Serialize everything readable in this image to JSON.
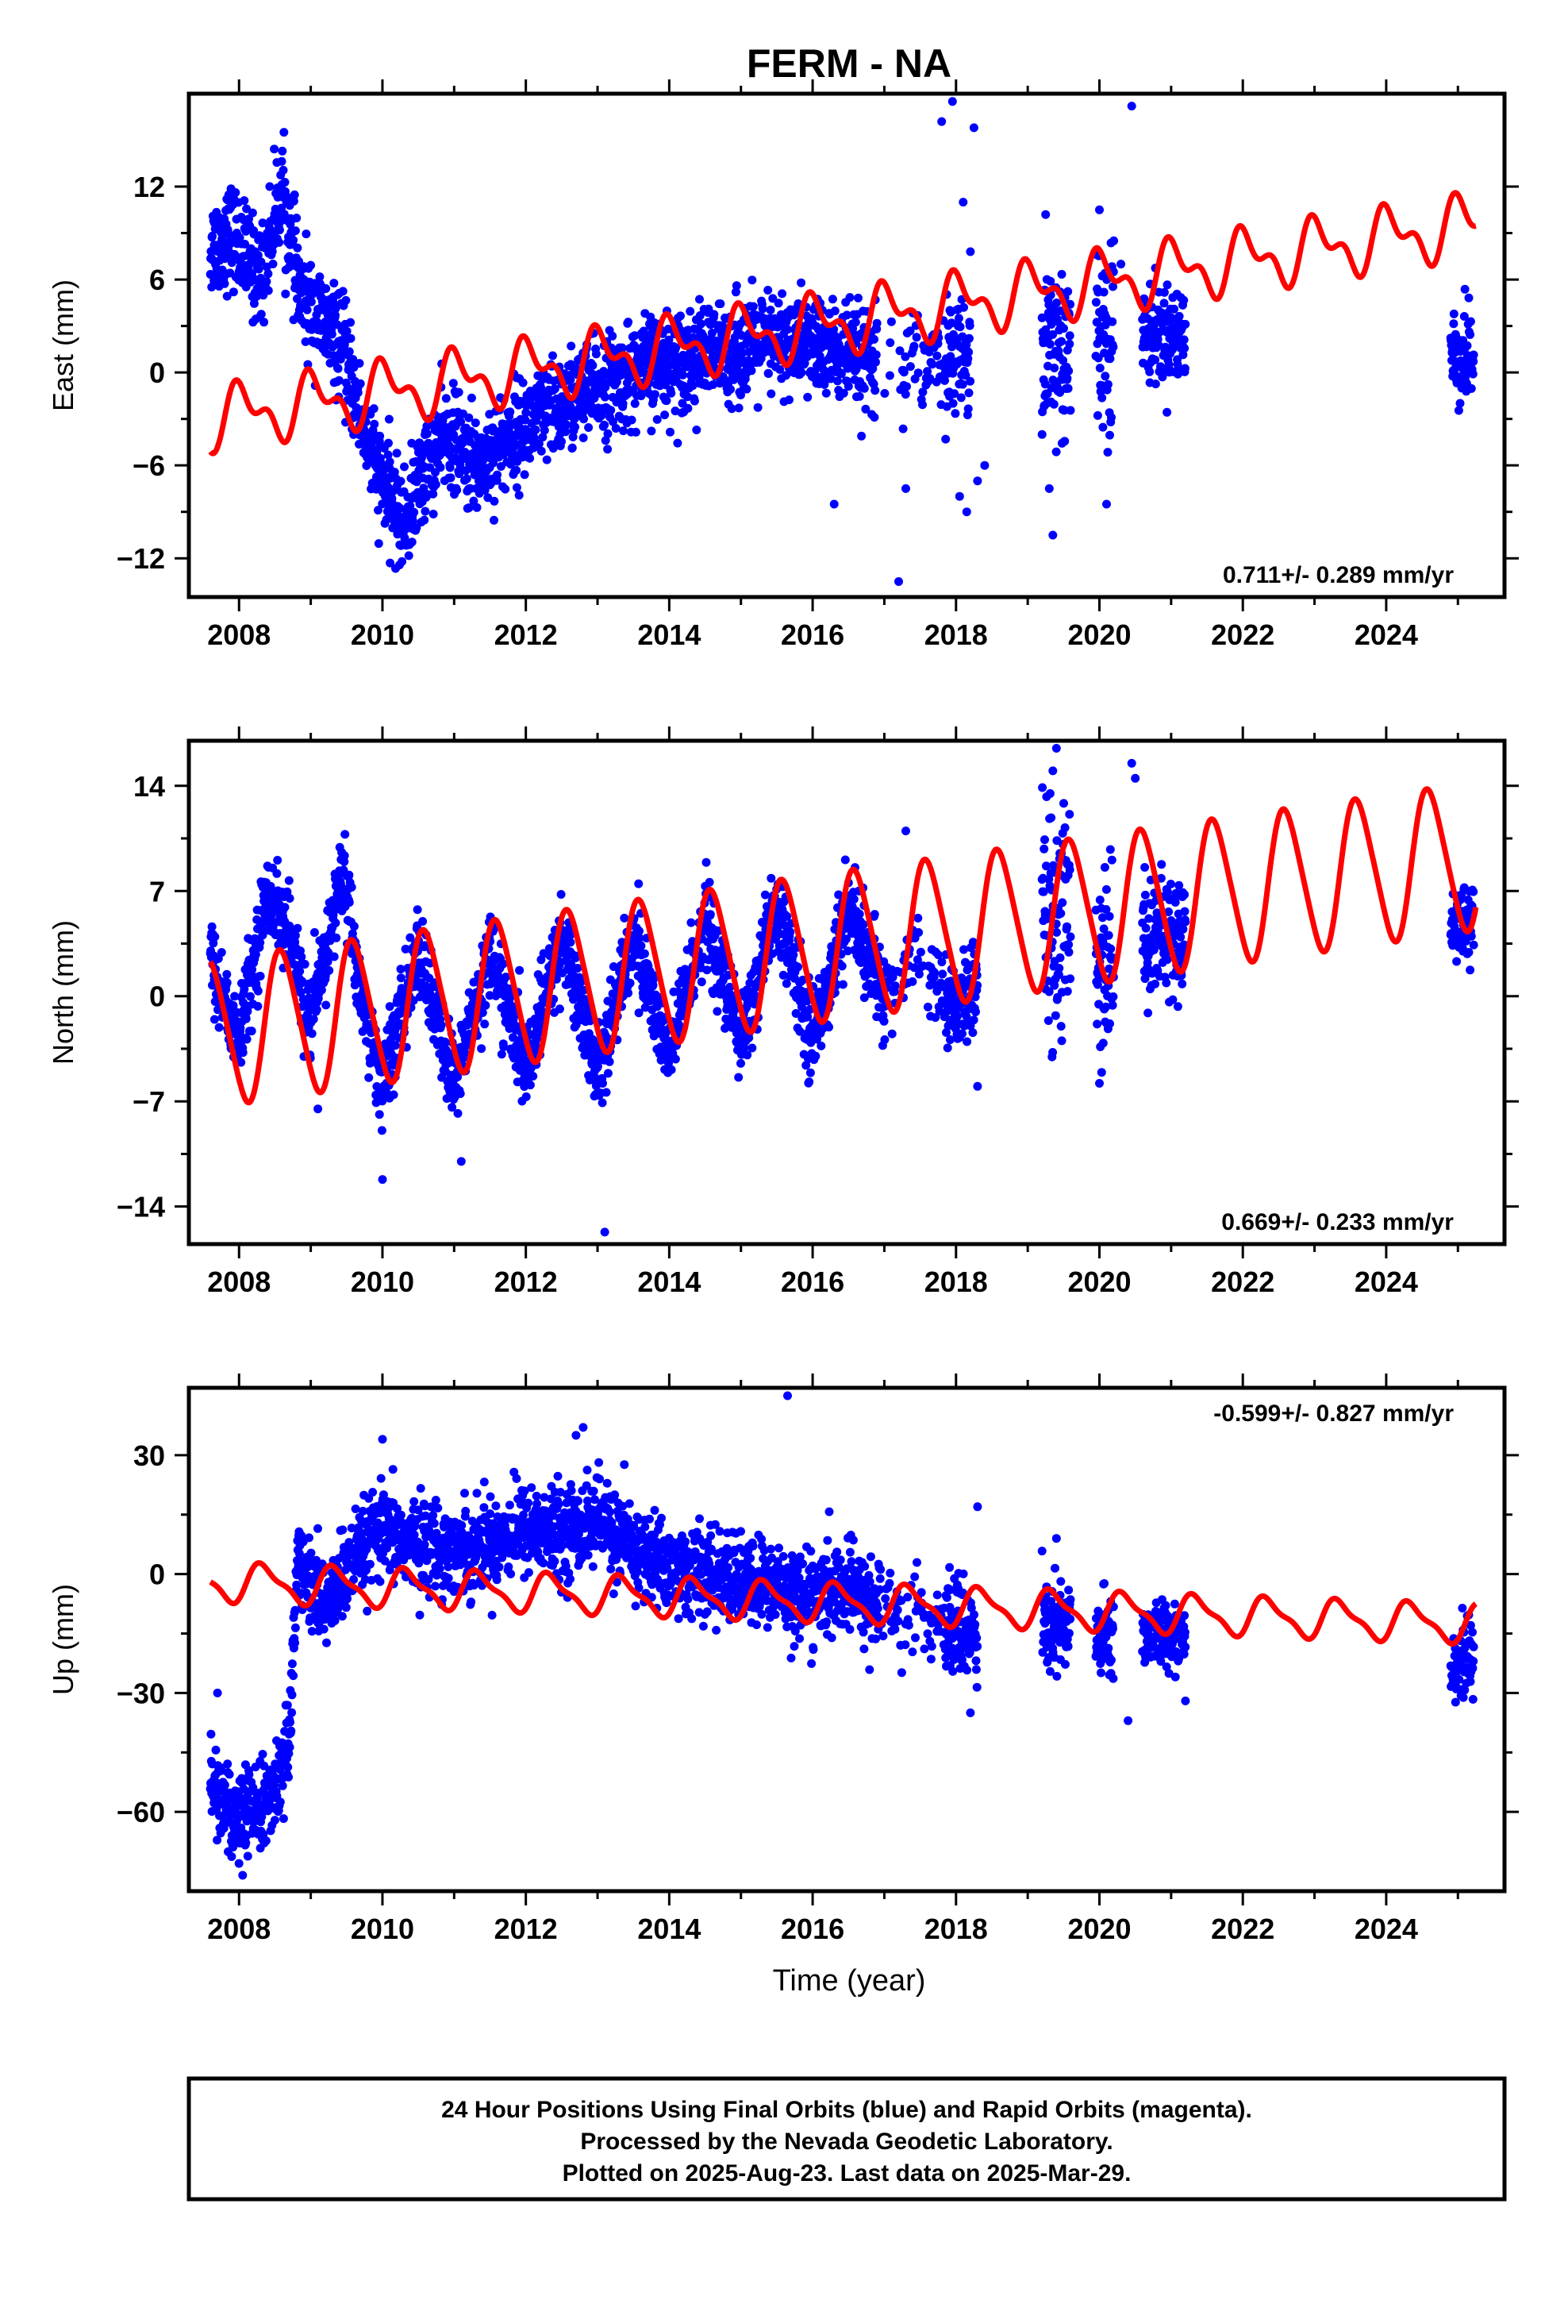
{
  "title": "FERM - NA",
  "colors": {
    "final": "#0000ff",
    "model": "#ff0000",
    "frame": "#000000"
  },
  "footer": {
    "line1": "24 Hour Positions Using Final Orbits (blue) and Rapid Orbits (magenta).",
    "line2": "Processed by the Nevada Geodetic Laboratory.",
    "line3": "Plotted on 2025-Aug-23. Last data on 2025-Mar-29."
  },
  "chart_data": [
    {
      "type": "scatter",
      "name": "east",
      "ylabel": "East (mm)",
      "xlabel": "",
      "xlim": [
        2007.3,
        2025.65
      ],
      "ylim": [
        -14.5,
        18
      ],
      "xticks": [
        2008,
        2010,
        2012,
        2014,
        2016,
        2018,
        2020,
        2022,
        2024
      ],
      "yticks": [
        -12,
        -6,
        0,
        6,
        12
      ],
      "rate_label": "0.711+/- 0.289 mm/yr",
      "rate_position": "bottom-right",
      "data_track": [
        [
          2007.6,
          8
        ],
        [
          2007.9,
          9
        ],
        [
          2008.3,
          6
        ],
        [
          2008.6,
          12
        ],
        [
          2008.85,
          5
        ],
        [
          2009.2,
          3
        ],
        [
          2009.45,
          1.5
        ],
        [
          2009.65,
          -2
        ],
        [
          2009.9,
          -6
        ],
        [
          2010.3,
          -10
        ],
        [
          2010.6,
          -6
        ],
        [
          2010.9,
          -4
        ],
        [
          2011.3,
          -6
        ],
        [
          2011.8,
          -4
        ],
        [
          2012.2,
          -3
        ],
        [
          2012.7,
          -1.5
        ],
        [
          2013.3,
          -0.5
        ],
        [
          2013.8,
          0.5
        ],
        [
          2014.4,
          1
        ],
        [
          2015,
          1.5
        ],
        [
          2015.6,
          2
        ],
        [
          2016.2,
          1.5
        ],
        [
          2016.8,
          0.5
        ],
        [
          2017.5,
          0.5
        ],
        [
          2018.2,
          1.5
        ]
      ],
      "data_spread": 1.6,
      "data_clusters": [
        {
          "x": [
            2019.2,
            2019.6
          ],
          "y": 1.5,
          "spread": 3.5
        },
        {
          "x": [
            2019.95,
            2020.2
          ],
          "y": 2.5,
          "spread": 3
        },
        {
          "x": [
            2020.6,
            2021.2
          ],
          "y": 2.5,
          "spread": 1.5
        },
        {
          "x": [
            2024.9,
            2025.22
          ],
          "y": 1,
          "spread": 1.6
        }
      ],
      "gaps": [
        [
          2016.9,
          2017.25,
          0.1
        ],
        [
          2017.25,
          2017.85,
          0.4
        ],
        [
          2018.4,
          2019.2,
          0
        ]
      ],
      "outliers": [
        [
          2017.95,
          17.5
        ],
        [
          2017.8,
          16.2
        ],
        [
          2018.25,
          15.8
        ],
        [
          2020.45,
          17.2
        ],
        [
          2017.2,
          -13.5
        ],
        [
          2019.35,
          -10.5
        ],
        [
          2019.3,
          -7.5
        ],
        [
          2018.1,
          11
        ],
        [
          2019.25,
          10.2
        ],
        [
          2020,
          10.5
        ],
        [
          2020.2,
          8.5
        ],
        [
          2020.1,
          -8.5
        ],
        [
          2016.3,
          -8.5
        ],
        [
          2018.15,
          -9
        ],
        [
          2018.05,
          -8
        ],
        [
          2018.4,
          -6
        ],
        [
          2017.3,
          -7.5
        ],
        [
          2018.2,
          7.8
        ],
        [
          2020.3,
          7
        ],
        [
          2019.2,
          -4
        ],
        [
          2018.3,
          -7
        ]
      ],
      "model": {
        "t0": 2007.6,
        "t1": 2025.25,
        "a": -3,
        "b": 0.711,
        "ref": 2007.6,
        "annual": 1.6,
        "semiannual": 1.0,
        "phase": 0.8
      },
      "model_offsets": [
        [
          2009.6,
          0
        ],
        [
          2011.8,
          0
        ]
      ]
    },
    {
      "type": "scatter",
      "name": "north",
      "ylabel": "North (mm)",
      "xlabel": "",
      "xlim": [
        2007.3,
        2025.65
      ],
      "ylim": [
        -16.5,
        17
      ],
      "xticks": [
        2008,
        2010,
        2012,
        2014,
        2016,
        2018,
        2020,
        2022,
        2024
      ],
      "yticks": [
        -14,
        -7,
        0,
        7,
        14
      ],
      "rate_label": "0.669+/- 0.233 mm/yr",
      "rate_position": "bottom-right",
      "data_track": [
        [
          2007.6,
          2.5
        ],
        [
          2008.0,
          -3
        ],
        [
          2008.4,
          7
        ],
        [
          2008.7,
          4
        ],
        [
          2009.0,
          -2
        ],
        [
          2009.45,
          8.5
        ],
        [
          2009.7,
          0
        ],
        [
          2010,
          -6
        ],
        [
          2010.5,
          3
        ],
        [
          2011,
          -6
        ],
        [
          2011.5,
          3
        ],
        [
          2012,
          -5
        ],
        [
          2012.5,
          4
        ],
        [
          2013,
          -5
        ],
        [
          2013.5,
          4
        ],
        [
          2014,
          -4
        ],
        [
          2014.5,
          5
        ],
        [
          2015,
          -3
        ],
        [
          2015.5,
          6
        ],
        [
          2016,
          -3
        ],
        [
          2016.5,
          6
        ],
        [
          2017,
          0
        ],
        [
          2017.5,
          3
        ],
        [
          2018,
          -1
        ],
        [
          2018.3,
          1
        ]
      ],
      "data_spread": 1.4,
      "data_clusters": [
        {
          "x": [
            2019.2,
            2019.6
          ],
          "y": 5,
          "spread": 4
        },
        {
          "x": [
            2019.95,
            2020.2
          ],
          "y": 3,
          "spread": 3.5
        },
        {
          "x": [
            2020.6,
            2021.2
          ],
          "y": 4,
          "spread": 2
        },
        {
          "x": [
            2024.9,
            2025.22
          ],
          "y": 5,
          "spread": 1.2
        }
      ],
      "gaps": [
        [
          2017.0,
          2017.85,
          0.3
        ],
        [
          2018.4,
          2019.2,
          0
        ]
      ],
      "outliers": [
        [
          2013.1,
          -15.7
        ],
        [
          2010,
          -12.2
        ],
        [
          2019.4,
          16.5
        ],
        [
          2019.35,
          15
        ],
        [
          2020.45,
          15.5
        ],
        [
          2020.5,
          14.5
        ],
        [
          2017.3,
          11
        ],
        [
          2009.1,
          -7.5
        ],
        [
          2011.1,
          -11
        ],
        [
          2020.0,
          -5.8
        ],
        [
          2018.3,
          -6
        ]
      ],
      "model": {
        "t0": 2007.6,
        "t1": 2025.25,
        "a": -2.5,
        "b": 0.669,
        "ref": 2007.6,
        "annual": 4.8,
        "semiannual": 0.6,
        "phase": 0.35
      },
      "model_offsets": []
    },
    {
      "type": "scatter",
      "name": "up",
      "ylabel": "Up (mm)",
      "xlabel": "Time (year)",
      "xlim": [
        2007.3,
        2025.65
      ],
      "ylim": [
        -80,
        47
      ],
      "xticks": [
        2008,
        2010,
        2012,
        2014,
        2016,
        2018,
        2020,
        2022,
        2024
      ],
      "yticks": [
        -60,
        -30,
        0,
        30
      ],
      "rate_label": "-0.599+/- 0.827 mm/yr",
      "rate_position": "top-right",
      "data_track": [
        [
          2007.6,
          -52
        ],
        [
          2008.0,
          -62
        ],
        [
          2008.4,
          -58
        ],
        [
          2008.7,
          -45
        ],
        [
          2008.8,
          3
        ],
        [
          2009.2,
          -8
        ],
        [
          2009.5,
          0
        ],
        [
          2009.9,
          10
        ],
        [
          2010.5,
          8
        ],
        [
          2011,
          6
        ],
        [
          2011.5,
          8
        ],
        [
          2012,
          12
        ],
        [
          2012.5,
          10
        ],
        [
          2013,
          14
        ],
        [
          2013.5,
          6
        ],
        [
          2014,
          2
        ],
        [
          2014.5,
          0
        ],
        [
          2015,
          -2
        ],
        [
          2015.5,
          -3
        ],
        [
          2016,
          -6
        ],
        [
          2016.5,
          -4
        ],
        [
          2016.9,
          -8
        ],
        [
          2017.5,
          -10
        ],
        [
          2018,
          -14
        ],
        [
          2018.3,
          -16
        ]
      ],
      "data_spread": 5.5,
      "data_clusters": [
        {
          "x": [
            2019.2,
            2019.6
          ],
          "y": -14,
          "spread": 6
        },
        {
          "x": [
            2019.95,
            2020.2
          ],
          "y": -16,
          "spread": 6
        },
        {
          "x": [
            2020.6,
            2021.2
          ],
          "y": -15,
          "spread": 4
        },
        {
          "x": [
            2024.9,
            2025.22
          ],
          "y": -22,
          "spread": 4.5
        }
      ],
      "gaps": [
        [
          2016.95,
          2017.85,
          0.3
        ],
        [
          2018.4,
          2019.2,
          0
        ]
      ],
      "outliers": [
        [
          2015.65,
          45
        ],
        [
          2012.8,
          37
        ],
        [
          2012.7,
          35
        ],
        [
          2010,
          34
        ],
        [
          2007.7,
          -30
        ],
        [
          2008.05,
          -76
        ],
        [
          2008.0,
          -73
        ],
        [
          2018.2,
          -35
        ],
        [
          2020.4,
          -37
        ],
        [
          2021.2,
          -32
        ],
        [
          2019.4,
          9
        ],
        [
          2018.3,
          17
        ]
      ],
      "model": {
        "t0": 2007.6,
        "t1": 2025.25,
        "a": -2,
        "b": -0.599,
        "ref": 2007.6,
        "annual": 4.5,
        "semiannual": 1.5,
        "phase": 0.1
      },
      "model_offsets": []
    }
  ]
}
